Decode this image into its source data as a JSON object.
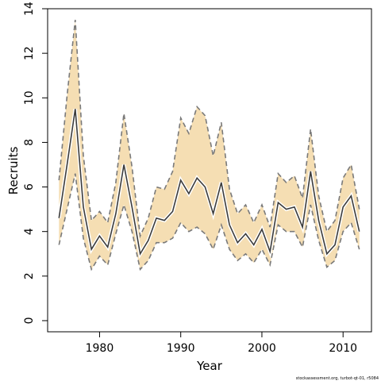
{
  "chart_data": {
    "type": "line",
    "title": "",
    "xlabel": "Year",
    "ylabel": "Recruits",
    "xlim": [
      1973.6,
      2013.5
    ],
    "ylim": [
      -0.5,
      14
    ],
    "x_ticks": [
      1980,
      1990,
      2000,
      2010
    ],
    "y_ticks": [
      0,
      2,
      4,
      6,
      8,
      10,
      12,
      14
    ],
    "grid": false,
    "colors": {
      "band": "#f5deb3",
      "bounds": "#7a7a7a",
      "median": "#3c3c3c",
      "axes": "#000000"
    },
    "x": [
      1975,
      1976,
      1977,
      1978,
      1979,
      1980,
      1981,
      1982,
      1983,
      1984,
      1985,
      1986,
      1987,
      1988,
      1989,
      1990,
      1991,
      1992,
      1993,
      1994,
      1995,
      1996,
      1997,
      1998,
      1999,
      2000,
      2001,
      2002,
      2003,
      2004,
      2005,
      2006,
      2007,
      2008,
      2009,
      2010,
      2011,
      2012
    ],
    "series": [
      {
        "role": "upper",
        "values": [
          6.3,
          10.1,
          13.5,
          7.4,
          4.5,
          4.9,
          4.4,
          6.2,
          9.3,
          6.9,
          3.8,
          4.6,
          6.0,
          5.9,
          6.7,
          9.1,
          8.4,
          9.6,
          9.2,
          7.4,
          8.9,
          5.9,
          4.8,
          5.2,
          4.4,
          5.2,
          4.2,
          6.6,
          6.2,
          6.5,
          5.5,
          8.6,
          5.6,
          4.0,
          4.5,
          6.4,
          7.0,
          5.0
        ]
      },
      {
        "role": "median",
        "values": [
          4.6,
          7.0,
          9.5,
          5.1,
          3.2,
          3.8,
          3.3,
          4.8,
          7.0,
          5.1,
          3.0,
          3.6,
          4.6,
          4.5,
          4.9,
          6.3,
          5.7,
          6.4,
          6.0,
          4.8,
          6.2,
          4.3,
          3.5,
          3.9,
          3.4,
          4.1,
          3.1,
          5.3,
          5.0,
          5.1,
          4.2,
          6.7,
          4.5,
          3.0,
          3.4,
          5.1,
          5.6,
          4.0
        ]
      },
      {
        "role": "lower",
        "values": [
          3.4,
          5.0,
          6.6,
          3.7,
          2.3,
          2.9,
          2.5,
          3.9,
          5.2,
          4.0,
          2.3,
          2.7,
          3.5,
          3.5,
          3.7,
          4.4,
          4.0,
          4.2,
          3.9,
          3.2,
          4.3,
          3.2,
          2.7,
          3.0,
          2.6,
          3.2,
          2.5,
          4.3,
          4.0,
          4.0,
          3.3,
          5.2,
          3.6,
          2.4,
          2.7,
          4.0,
          4.4,
          3.2
        ]
      }
    ]
  },
  "credit": "stockassessment.org, turbot-qt-01, r5084"
}
